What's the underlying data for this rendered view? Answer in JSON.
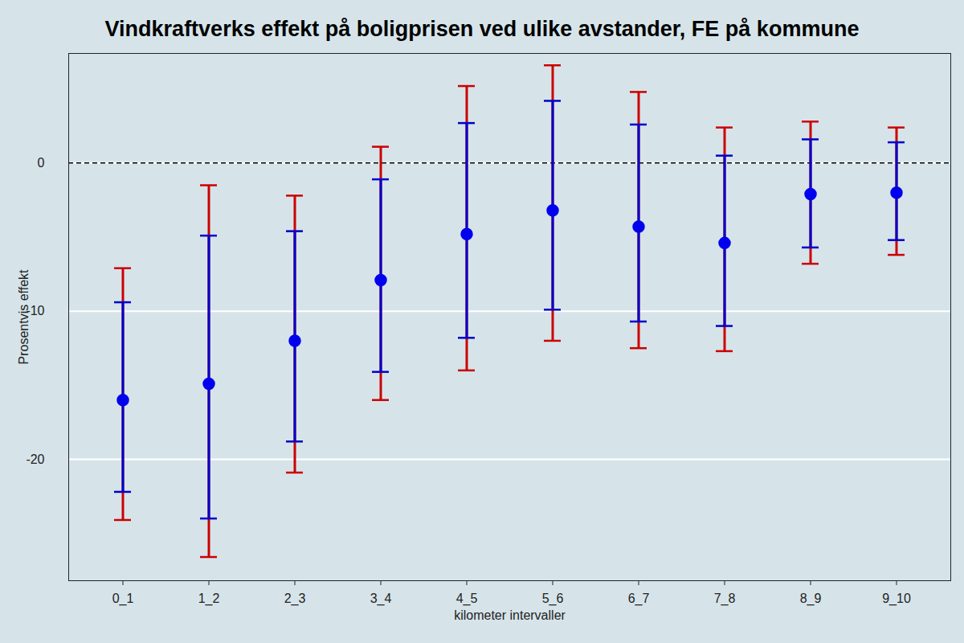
{
  "chart_data": {
    "type": "errorbar",
    "title": "Vindkraftverks effekt på boligprisen ved ulike avstander, FE på kommune",
    "x_label": "kilometer intervaller",
    "y_label": "Prosentvis effekt",
    "categories": [
      "0_1",
      "1_2",
      "2_3",
      "3_4",
      "4_5",
      "5_6",
      "6_7",
      "7_8",
      "8_9",
      "9_10"
    ],
    "values": [
      -16.0,
      -14.9,
      -12.0,
      -7.9,
      -4.8,
      -3.2,
      -4.3,
      -5.4,
      -2.1,
      -2.0
    ],
    "color": "#0000ee",
    "marker": "circle",
    "error_bars": [
      {
        "color": "#cc0000",
        "lower": [
          -24.1,
          -26.6,
          -20.9,
          -16.0,
          -14.0,
          -12.0,
          -12.5,
          -12.7,
          -6.8,
          -6.2
        ],
        "upper": [
          -7.1,
          -1.5,
          -2.2,
          1.1,
          5.2,
          6.6,
          4.8,
          2.4,
          2.8,
          2.4
        ]
      },
      {
        "color": "#0000cc",
        "lower": [
          -22.2,
          -24.0,
          -18.8,
          -14.1,
          -11.8,
          -9.9,
          -10.7,
          -11.0,
          -5.7,
          -5.2
        ],
        "upper": [
          -9.4,
          -4.9,
          -4.6,
          -1.1,
          2.7,
          4.2,
          2.6,
          0.5,
          1.6,
          1.4
        ]
      }
    ],
    "reference_lines": [
      {
        "value": 0,
        "line_style": "dashed",
        "color": "#000000"
      }
    ],
    "ylim": [
      -28.2,
      7.4
    ],
    "yticks": [
      -20,
      -10,
      0
    ],
    "grid": true
  }
}
